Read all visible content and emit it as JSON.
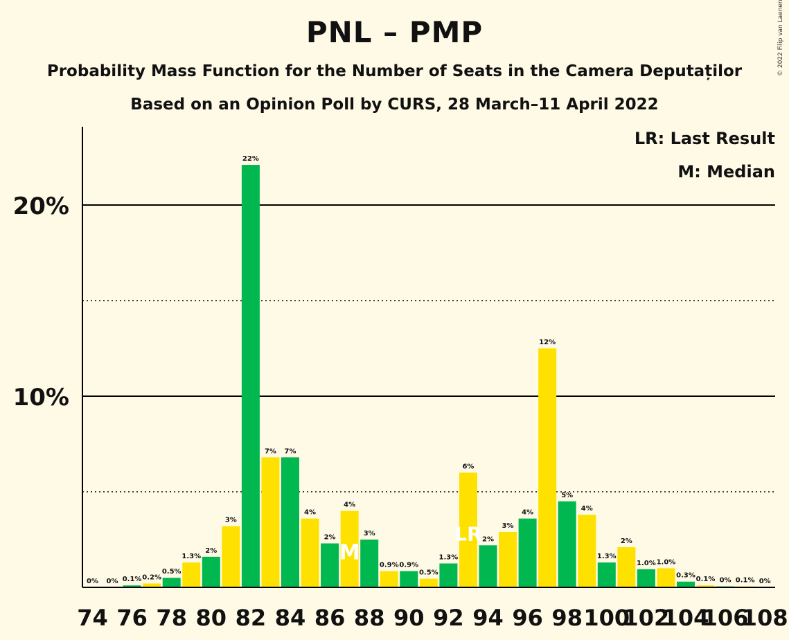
{
  "title": "PNL – PMP",
  "subtitle1": "Probability Mass Function for the Number of Seats in the Camera Deputaților",
  "subtitle2": "Based on an Opinion Poll by CURS, 28 March–11 April 2022",
  "copyright": "© 2022 Filip van Laenen",
  "legend": {
    "last_result": "LR: Last Result",
    "median": "M: Median"
  },
  "colors": {
    "background": "#FFFAE6",
    "green": "#00B84F",
    "yellow": "#FFE100",
    "axis": "#000000"
  },
  "chart_data": {
    "type": "bar",
    "x": [
      74,
      75,
      76,
      77,
      78,
      79,
      80,
      81,
      82,
      83,
      84,
      85,
      86,
      87,
      88,
      89,
      90,
      91,
      92,
      93,
      94,
      95,
      96,
      97,
      98,
      99,
      100,
      101,
      102,
      103,
      104,
      105,
      106,
      107,
      108
    ],
    "values": [
      0,
      0,
      0.1,
      0.2,
      0.5,
      1.3,
      1.6,
      3.2,
      22.1,
      6.8,
      6.8,
      3.6,
      2.3,
      4.0,
      2.5,
      0.85,
      0.85,
      0.45,
      1.25,
      6.0,
      2.2,
      2.9,
      3.6,
      12.5,
      4.5,
      3.8,
      1.3,
      2.1,
      0.95,
      1.0,
      0.3,
      0.1,
      0.05,
      0.05,
      0
    ],
    "labels": [
      "0%",
      "0%",
      "0.1%",
      "0.2%",
      "0.5%",
      "1.3%",
      "2%",
      "3%",
      "22%",
      "7%",
      "7%",
      "4%",
      "2%",
      "4%",
      "3%",
      "0.9%",
      "0.9%",
      "0.5%",
      "1.3%",
      "6%",
      "2%",
      "3%",
      "4%",
      "12%",
      "5%",
      "4%",
      "1.3%",
      "2%",
      "1.0%",
      "1.0%",
      "0.3%",
      "0.1%",
      "0%",
      "0.1%",
      "0%"
    ],
    "show_label": [
      true,
      true,
      true,
      true,
      true,
      true,
      true,
      true,
      true,
      true,
      true,
      true,
      true,
      true,
      true,
      true,
      true,
      true,
      true,
      true,
      true,
      true,
      true,
      true,
      true,
      true,
      true,
      true,
      true,
      true,
      true,
      true,
      true,
      true,
      true
    ],
    "bar_colors": [
      "green",
      "yellow",
      "green",
      "yellow",
      "green",
      "yellow",
      "green",
      "yellow",
      "green",
      "yellow",
      "green",
      "yellow",
      "green",
      "yellow",
      "green",
      "yellow",
      "green",
      "yellow",
      "green",
      "yellow",
      "green",
      "yellow",
      "green",
      "yellow",
      "green",
      "yellow",
      "green",
      "yellow",
      "green",
      "yellow",
      "green",
      "yellow",
      "green",
      "yellow",
      "green"
    ],
    "xticks": [
      74,
      76,
      78,
      80,
      82,
      84,
      86,
      88,
      90,
      92,
      94,
      96,
      98,
      100,
      102,
      104,
      106,
      108
    ],
    "xtick_labels": [
      "74",
      "76",
      "78",
      "80",
      "82",
      "84",
      "86",
      "88",
      "90",
      "92",
      "94",
      "96",
      "98",
      "100",
      "102",
      "104",
      "106",
      "108"
    ],
    "yticks_major": [
      10,
      20
    ],
    "ytick_labels": [
      "10%",
      "20%"
    ],
    "yticks_minor": [
      5,
      15
    ],
    "ylim": [
      0,
      24
    ],
    "median_seat": 87,
    "median_marker": "M",
    "last_result_seat": 93,
    "last_result_marker": "LR"
  }
}
